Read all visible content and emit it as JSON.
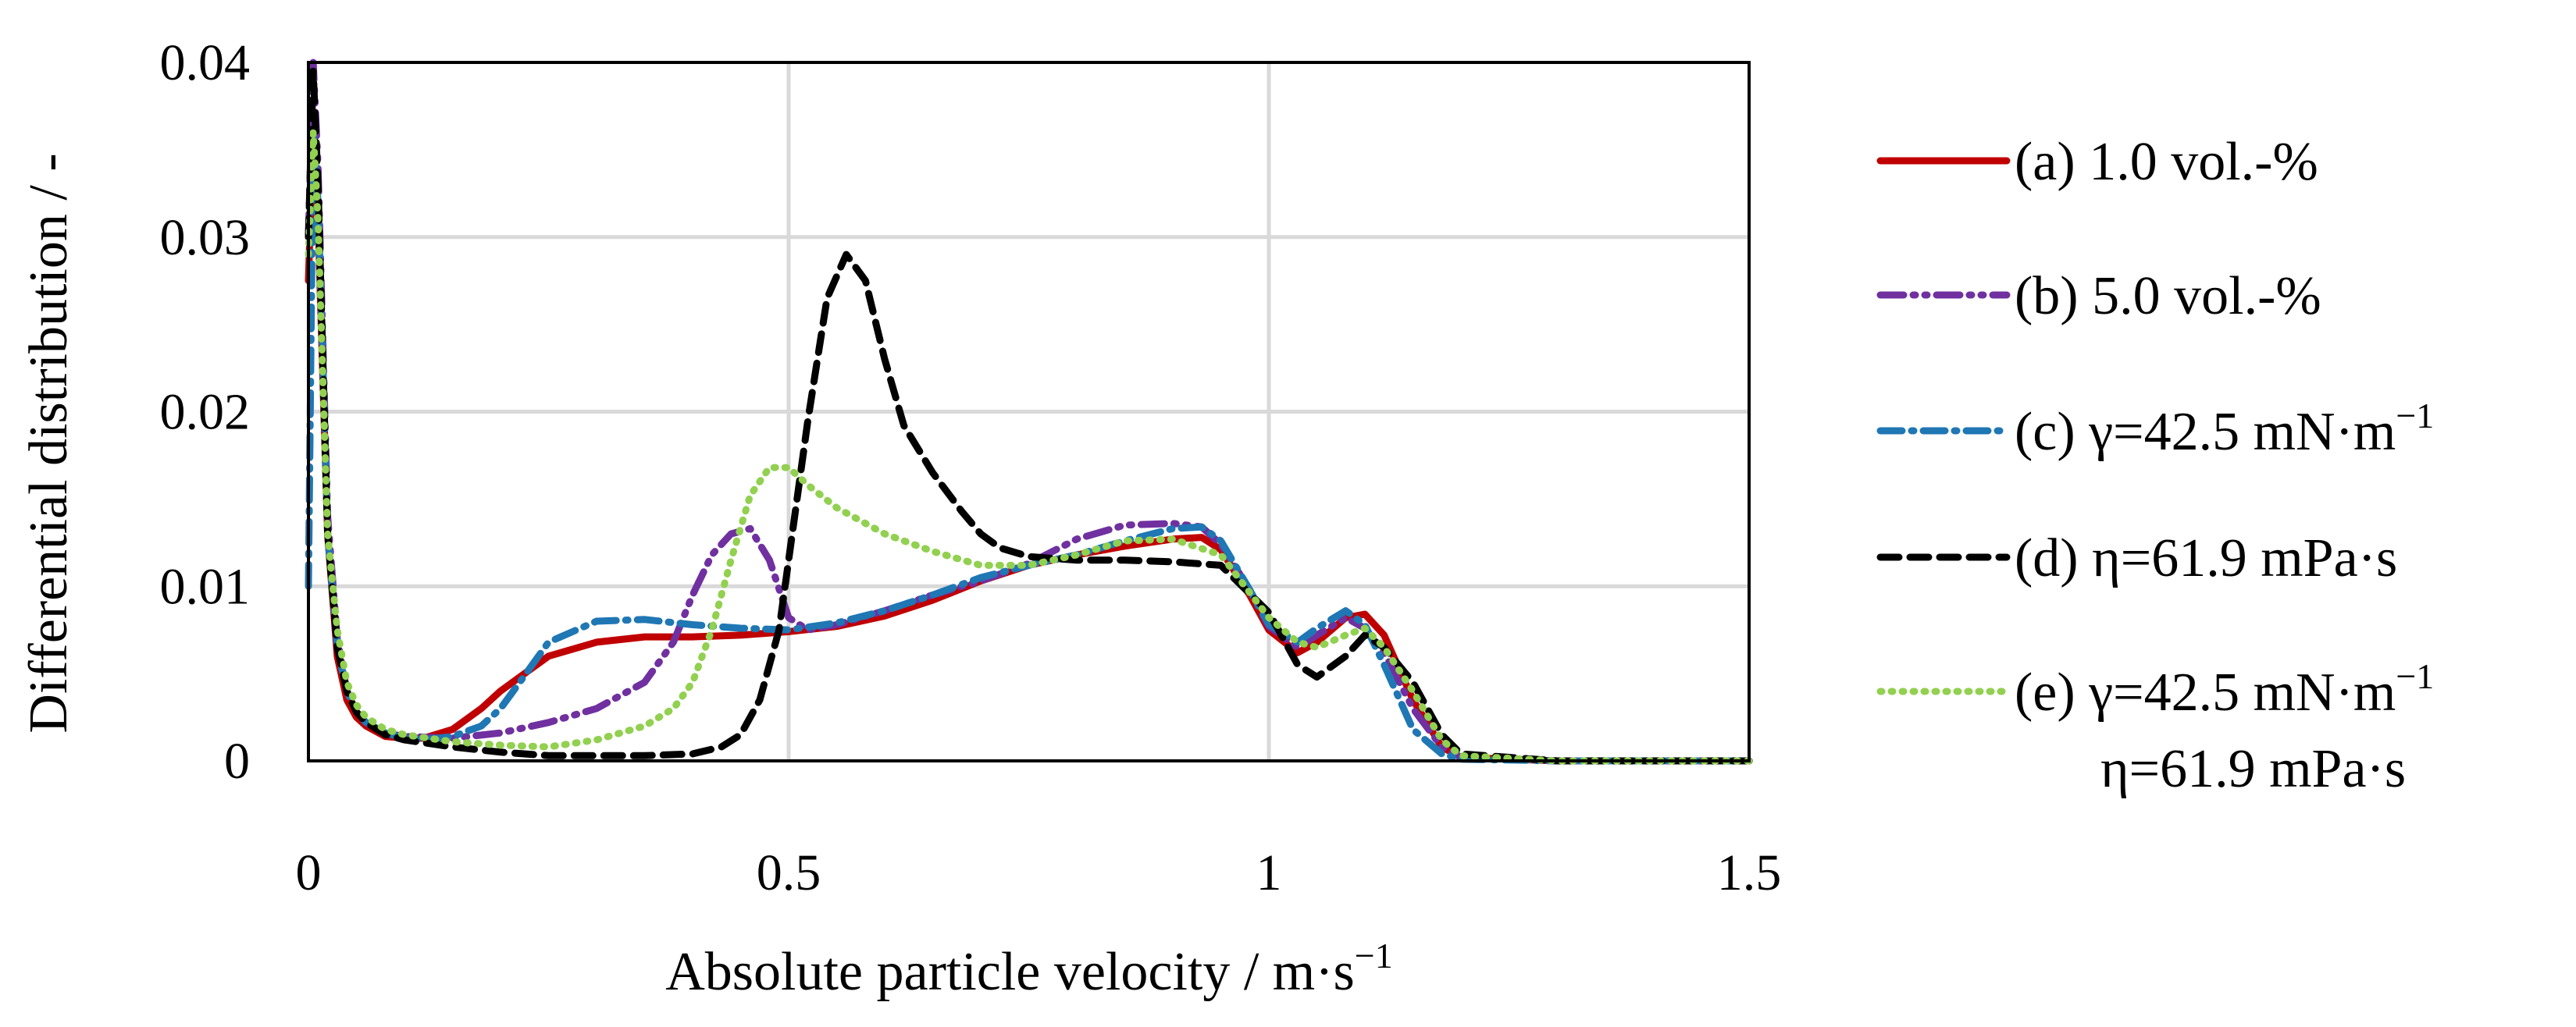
{
  "chart_data": {
    "type": "line",
    "title": "",
    "xlabel": "Absolute particle velocity / m·s",
    "xlabel_sup": "−1",
    "ylabel": "Differential distribution / -",
    "xlim": [
      0,
      1.5
    ],
    "ylim": [
      0,
      0.04
    ],
    "xticks": [
      0,
      0.5,
      1,
      1.5
    ],
    "xtick_labels": [
      "0",
      "0.5",
      "1",
      "1.5"
    ],
    "yticks": [
      0,
      0.01,
      0.02,
      0.03,
      0.04
    ],
    "ytick_labels": [
      "0",
      "0.01",
      "0.02",
      "0.03",
      "0.04"
    ],
    "grid": true,
    "legend_position": "right",
    "series": [
      {
        "name": "(a) 1.0 vol.-%",
        "legend_lines": [
          "(a) 1.0 vol.-%"
        ],
        "color": "#c00000",
        "dash": "solid",
        "x": [
          0,
          0.005,
          0.01,
          0.015,
          0.02,
          0.03,
          0.04,
          0.05,
          0.06,
          0.08,
          0.1,
          0.12,
          0.15,
          0.18,
          0.2,
          0.25,
          0.3,
          0.35,
          0.4,
          0.45,
          0.5,
          0.55,
          0.6,
          0.65,
          0.7,
          0.75,
          0.8,
          0.85,
          0.9,
          0.93,
          0.95,
          0.98,
          1.0,
          1.03,
          1.05,
          1.08,
          1.1,
          1.12,
          1.15,
          1.18,
          1.2,
          1.25,
          1.3,
          1.4,
          1.5
        ],
        "values": [
          0.0275,
          0.036,
          0.031,
          0.022,
          0.013,
          0.006,
          0.0035,
          0.0025,
          0.002,
          0.0014,
          0.0013,
          0.0013,
          0.0018,
          0.003,
          0.004,
          0.006,
          0.0068,
          0.0071,
          0.0071,
          0.0072,
          0.0074,
          0.0077,
          0.0083,
          0.0092,
          0.0103,
          0.0112,
          0.0118,
          0.0123,
          0.0127,
          0.0128,
          0.0121,
          0.0095,
          0.0075,
          0.0062,
          0.0068,
          0.0082,
          0.0084,
          0.0072,
          0.0035,
          0.0008,
          0.0002,
          0.0001,
          0,
          0,
          0
        ]
      },
      {
        "name": "(b) 5.0 vol.-%",
        "legend_lines": [
          "(b) 5.0 vol.-%"
        ],
        "color": "#7030a0",
        "dash": "longdashdotdot",
        "x": [
          0,
          0.005,
          0.01,
          0.015,
          0.02,
          0.03,
          0.04,
          0.05,
          0.06,
          0.08,
          0.1,
          0.15,
          0.2,
          0.25,
          0.3,
          0.35,
          0.38,
          0.4,
          0.42,
          0.44,
          0.46,
          0.48,
          0.5,
          0.52,
          0.55,
          0.6,
          0.65,
          0.7,
          0.75,
          0.8,
          0.85,
          0.9,
          0.93,
          0.95,
          0.98,
          1.0,
          1.03,
          1.05,
          1.08,
          1.1,
          1.12,
          1.15,
          1.18,
          1.2,
          1.3,
          1.5
        ],
        "values": [
          0.03,
          0.04,
          0.034,
          0.024,
          0.014,
          0.007,
          0.004,
          0.0028,
          0.0022,
          0.0016,
          0.0014,
          0.0013,
          0.0016,
          0.0022,
          0.003,
          0.0045,
          0.0068,
          0.0095,
          0.0118,
          0.013,
          0.0133,
          0.0115,
          0.0082,
          0.0075,
          0.0078,
          0.0086,
          0.0095,
          0.0103,
          0.0113,
          0.0127,
          0.0135,
          0.0136,
          0.0134,
          0.0124,
          0.0098,
          0.0077,
          0.0065,
          0.0072,
          0.0082,
          0.0076,
          0.0062,
          0.003,
          0.0008,
          0.0002,
          0,
          0
        ]
      },
      {
        "name": "(c) γ=42.5 mN·m−1",
        "legend_lines": [
          "(c) γ=42.5 mN·m",
          "−1"
        ],
        "color": "#1f77b4",
        "dash": "dashdot",
        "x": [
          0,
          0.005,
          0.01,
          0.015,
          0.02,
          0.03,
          0.04,
          0.05,
          0.06,
          0.08,
          0.1,
          0.12,
          0.15,
          0.18,
          0.2,
          0.22,
          0.25,
          0.3,
          0.35,
          0.4,
          0.45,
          0.5,
          0.55,
          0.6,
          0.65,
          0.7,
          0.75,
          0.8,
          0.85,
          0.9,
          0.93,
          0.95,
          0.98,
          1.0,
          1.03,
          1.05,
          1.08,
          1.1,
          1.12,
          1.15,
          1.18,
          1.2,
          1.3,
          1.5
        ],
        "values": [
          0.01,
          0.036,
          0.032,
          0.023,
          0.013,
          0.0065,
          0.004,
          0.0028,
          0.0022,
          0.0016,
          0.0013,
          0.0012,
          0.0014,
          0.002,
          0.003,
          0.0045,
          0.0068,
          0.008,
          0.0081,
          0.0078,
          0.0076,
          0.0075,
          0.0079,
          0.0086,
          0.0095,
          0.0105,
          0.0112,
          0.0118,
          0.0126,
          0.0133,
          0.0134,
          0.0126,
          0.0098,
          0.0078,
          0.0068,
          0.0076,
          0.0086,
          0.0078,
          0.0055,
          0.0018,
          0.0004,
          0.0001,
          0,
          0
        ]
      },
      {
        "name": "(d) η=61.9 mPa·s",
        "legend_lines": [
          "(d) η=61.9 mPa·s"
        ],
        "color": "#000000",
        "dash": "dash",
        "x": [
          0,
          0.005,
          0.01,
          0.015,
          0.02,
          0.03,
          0.04,
          0.05,
          0.06,
          0.08,
          0.1,
          0.15,
          0.2,
          0.25,
          0.3,
          0.35,
          0.4,
          0.43,
          0.45,
          0.47,
          0.49,
          0.5,
          0.52,
          0.54,
          0.56,
          0.58,
          0.6,
          0.62,
          0.65,
          0.68,
          0.7,
          0.72,
          0.75,
          0.8,
          0.85,
          0.9,
          0.95,
          1.0,
          1.03,
          1.05,
          1.08,
          1.1,
          1.12,
          1.15,
          1.18,
          1.2,
          1.25,
          1.3,
          1.5
        ],
        "values": [
          0.03,
          0.0395,
          0.033,
          0.023,
          0.013,
          0.0065,
          0.004,
          0.0028,
          0.0022,
          0.0015,
          0.0012,
          0.0008,
          0.0005,
          0.0003,
          0.0003,
          0.0003,
          0.0004,
          0.0008,
          0.0015,
          0.0035,
          0.0075,
          0.0115,
          0.0195,
          0.0265,
          0.029,
          0.0275,
          0.023,
          0.0192,
          0.0165,
          0.0143,
          0.013,
          0.0122,
          0.0117,
          0.0115,
          0.0115,
          0.0114,
          0.0112,
          0.0085,
          0.0055,
          0.0048,
          0.006,
          0.0072,
          0.0065,
          0.0045,
          0.0015,
          0.0004,
          0.0002,
          0,
          0
        ]
      },
      {
        "name": "(e) γ=42.5 mN·m−1 η=61.9 mPa·s",
        "legend_lines": [
          "(e) γ=42.5 mN·m",
          "−1",
          "η=61.9 mPa·s"
        ],
        "color": "#92d050",
        "dash": "dot",
        "x": [
          0,
          0.005,
          0.01,
          0.015,
          0.02,
          0.03,
          0.04,
          0.05,
          0.06,
          0.08,
          0.1,
          0.15,
          0.2,
          0.25,
          0.3,
          0.35,
          0.38,
          0.4,
          0.42,
          0.44,
          0.46,
          0.48,
          0.5,
          0.52,
          0.55,
          0.6,
          0.65,
          0.7,
          0.75,
          0.8,
          0.85,
          0.9,
          0.95,
          1.0,
          1.03,
          1.05,
          1.08,
          1.1,
          1.12,
          1.15,
          1.18,
          1.2,
          1.3,
          1.5
        ],
        "values": [
          0.029,
          0.036,
          0.031,
          0.022,
          0.013,
          0.0075,
          0.0045,
          0.0032,
          0.0025,
          0.0018,
          0.0015,
          0.0011,
          0.0009,
          0.0008,
          0.0012,
          0.002,
          0.003,
          0.0045,
          0.0075,
          0.0115,
          0.0152,
          0.0168,
          0.0168,
          0.0158,
          0.0145,
          0.013,
          0.012,
          0.0112,
          0.0112,
          0.0118,
          0.0126,
          0.0127,
          0.0118,
          0.0082,
          0.0068,
          0.0065,
          0.0072,
          0.0076,
          0.0065,
          0.004,
          0.0012,
          0.0003,
          0,
          0
        ]
      }
    ]
  }
}
